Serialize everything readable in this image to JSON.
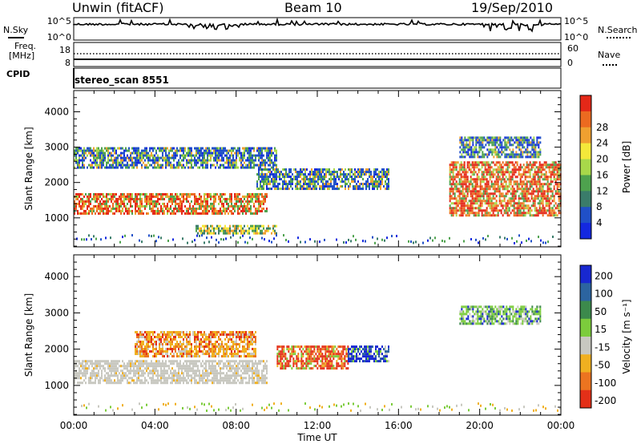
{
  "header": {
    "station": "Unwin (fitACF)",
    "beam": "Beam 10",
    "date": "19/Sep/2010"
  },
  "aux": {
    "nsky_label": "N.Sky",
    "nsearch_label": "N.Search",
    "freq_label_1": "Freq.",
    "freq_label_2": "[MHz]",
    "nave_label": "Nave",
    "cpid_label": "CPID",
    "cpid_value": "stereo_scan 8551",
    "noise_ticks_left": [
      "10^5",
      "10^0"
    ],
    "noise_ticks_right": [
      "10^5",
      "10^0"
    ],
    "freq_ticks": [
      "18",
      "8"
    ],
    "nave_ticks": [
      "60",
      "0"
    ]
  },
  "chart_data": [
    {
      "type": "heatmap",
      "panel": "power",
      "ylabel": "Slant Range [km]",
      "ylim": [
        180,
        4600
      ],
      "yticks": [
        "1000",
        "2000",
        "3000",
        "4000"
      ],
      "colorbar_label": "Power [dB]",
      "colorbar_ticks": [
        "4",
        "8",
        "12",
        "16",
        "20",
        "24",
        "28"
      ],
      "colorscale": [
        "#1428e0",
        "#2050c8",
        "#3a7c6a",
        "#4ea24e",
        "#a8d84a",
        "#f4e83a",
        "#f0a030",
        "#ec6a20",
        "#e42818"
      ],
      "features": [
        {
          "x_range": [
            "00:00",
            "09:30"
          ],
          "y_range": [
            1100,
            1700
          ],
          "level": "high"
        },
        {
          "x_range": [
            "00:00",
            "10:00"
          ],
          "y_range": [
            2400,
            3000
          ],
          "level": "low"
        },
        {
          "x_range": [
            "06:00",
            "10:00"
          ],
          "y_range": [
            550,
            800
          ],
          "level": "medium"
        },
        {
          "x_range": [
            "09:00",
            "15:30"
          ],
          "y_range": [
            1800,
            2400
          ],
          "level": "low"
        },
        {
          "x_range": [
            "18:30",
            "24:00"
          ],
          "y_range": [
            1100,
            2600
          ],
          "level": "high"
        },
        {
          "x_range": [
            "19:00",
            "23:00"
          ],
          "y_range": [
            2700,
            3300
          ],
          "level": "low"
        }
      ]
    },
    {
      "type": "heatmap",
      "panel": "velocity",
      "xlabel": "Time UT",
      "xticks": [
        "00:00",
        "04:00",
        "08:00",
        "12:00",
        "16:00",
        "20:00",
        "00:00"
      ],
      "ylabel": "Slant Range [km]",
      "ylim": [
        180,
        4600
      ],
      "yticks": [
        "1000",
        "2000",
        "3000",
        "4000"
      ],
      "colorbar_label": "Velocity [m s⁻¹]",
      "colorbar_ticks": [
        "200",
        "100",
        "50",
        "15",
        "-15",
        "-50",
        "-100",
        "-200"
      ],
      "colorscale": [
        "#1828d0",
        "#2c64a0",
        "#3c8a4c",
        "#7ccc3c",
        "#c8c8c0",
        "#f0b020",
        "#ec7420",
        "#e43018"
      ],
      "features": [
        {
          "x_range": [
            "00:00",
            "09:30"
          ],
          "y_range": [
            1100,
            1700
          ],
          "level": "ground"
        },
        {
          "x_range": [
            "03:00",
            "09:00"
          ],
          "y_range": [
            1800,
            2500
          ],
          "level": "negative"
        },
        {
          "x_range": [
            "10:00",
            "13:30"
          ],
          "y_range": [
            1500,
            2100
          ],
          "level": "strong-negative"
        },
        {
          "x_range": [
            "13:30",
            "15:30"
          ],
          "y_range": [
            1700,
            2100
          ],
          "level": "strong-positive"
        },
        {
          "x_range": [
            "19:00",
            "23:00"
          ],
          "y_range": [
            2700,
            3200
          ],
          "level": "positive"
        }
      ]
    }
  ]
}
